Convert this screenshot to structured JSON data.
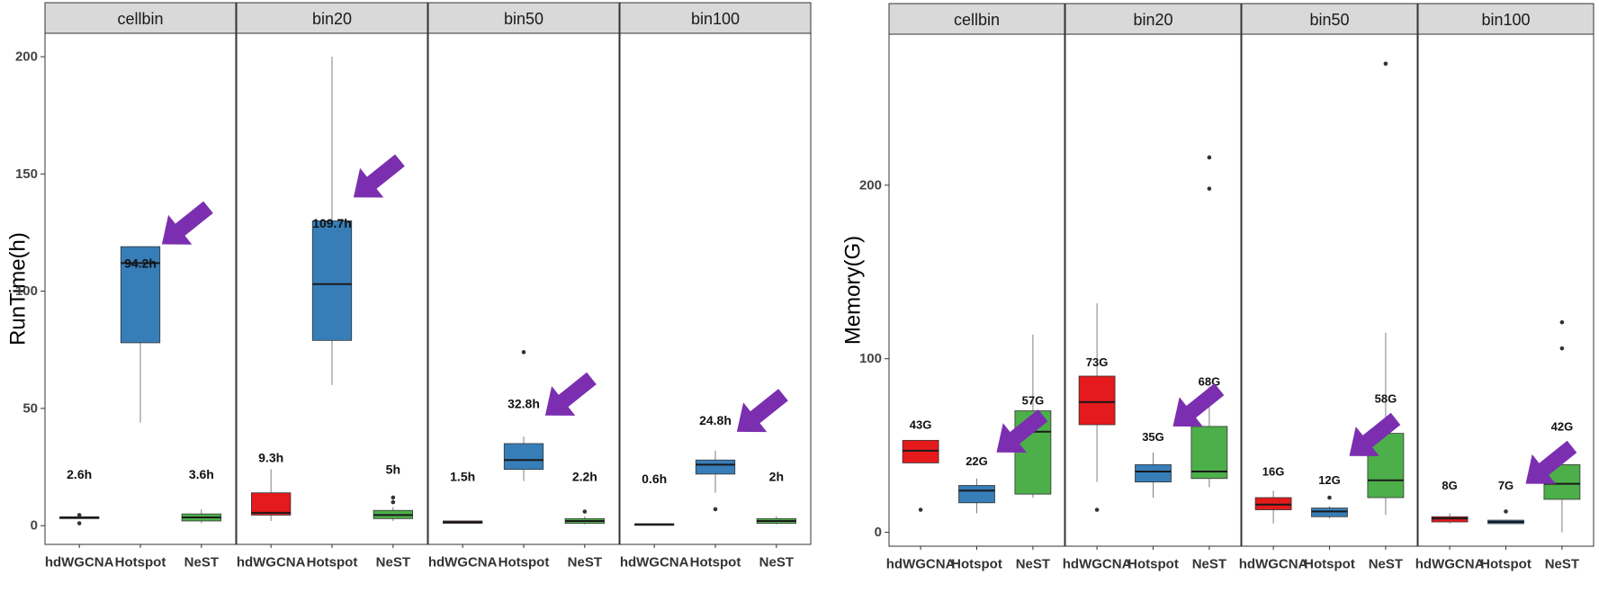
{
  "colors": {
    "hdWGCNA": "#e41a1c",
    "Hotspot": "#377eb8",
    "NeST": "#4daf4a",
    "arrow": "#7b2fb0",
    "strip": "#d9d9d9",
    "panel_border": "#333333"
  },
  "chart_data": [
    {
      "type": "box",
      "ylabel": "RunTime(h)",
      "ylim": [
        -8,
        210
      ],
      "yticks": [
        0,
        50,
        100,
        150,
        200
      ],
      "categories": [
        "hdWGCNA",
        "Hotspot",
        "NeST"
      ],
      "panels": [
        {
          "name": "cellbin",
          "boxes": [
            {
              "group": "hdWGCNA",
              "q1": 3.0,
              "median": 3.4,
              "q3": 3.8,
              "wlo": 3.0,
              "whi": 3.8,
              "outliers": [
                1.0,
                4.5
              ],
              "label": "2.6h",
              "label_y": 22
            },
            {
              "group": "Hotspot",
              "q1": 78,
              "median": 112,
              "q3": 119,
              "wlo": 44,
              "whi": 119,
              "outliers": [],
              "label": "94.2h",
              "label_y": 112
            },
            {
              "group": "NeST",
              "q1": 2.0,
              "median": 3.5,
              "q3": 5.0,
              "wlo": 1.0,
              "whi": 7.0,
              "outliers": [],
              "label": "3.6h",
              "label_y": 22
            }
          ],
          "arrow_target": {
            "group": "Hotspot",
            "y": 120
          }
        },
        {
          "name": "bin20",
          "boxes": [
            {
              "group": "hdWGCNA",
              "q1": 4.5,
              "median": 5.5,
              "q3": 14,
              "wlo": 2,
              "whi": 24,
              "outliers": [],
              "label": "9.3h",
              "label_y": 29
            },
            {
              "group": "Hotspot",
              "q1": 79,
              "median": 103,
              "q3": 130,
              "wlo": 60,
              "whi": 200,
              "outliers": [],
              "label": "109.7h",
              "label_y": 129
            },
            {
              "group": "NeST",
              "q1": 3.0,
              "median": 4.5,
              "q3": 6.5,
              "wlo": 2,
              "whi": 8,
              "outliers": [
                10,
                12
              ],
              "label": "5h",
              "label_y": 24
            }
          ],
          "arrow_target": {
            "group": "Hotspot",
            "y": 140
          }
        },
        {
          "name": "bin50",
          "boxes": [
            {
              "group": "hdWGCNA",
              "q1": 1.0,
              "median": 1.5,
              "q3": 2.0,
              "wlo": 1.0,
              "whi": 2.0,
              "outliers": [],
              "label": "1.5h",
              "label_y": 21
            },
            {
              "group": "Hotspot",
              "q1": 24,
              "median": 28,
              "q3": 35,
              "wlo": 19,
              "whi": 38,
              "outliers": [
                74
              ],
              "label": "32.8h",
              "label_y": 52
            },
            {
              "group": "NeST",
              "q1": 1.0,
              "median": 2.0,
              "q3": 3.0,
              "wlo": 0.5,
              "whi": 4.0,
              "outliers": [
                6
              ],
              "label": "2.2h",
              "label_y": 21
            }
          ],
          "arrow_target": {
            "group": "Hotspot",
            "y": 47
          }
        },
        {
          "name": "bin100",
          "boxes": [
            {
              "group": "hdWGCNA",
              "q1": 0.5,
              "median": 0.6,
              "q3": 0.7,
              "wlo": 0.5,
              "whi": 0.7,
              "outliers": [],
              "label": "0.6h",
              "label_y": 20
            },
            {
              "group": "Hotspot",
              "q1": 22,
              "median": 26,
              "q3": 28,
              "wlo": 14,
              "whi": 32,
              "outliers": [
                7
              ],
              "label": "24.8h",
              "label_y": 45
            },
            {
              "group": "NeST",
              "q1": 1.0,
              "median": 2.0,
              "q3": 3.0,
              "wlo": 0.5,
              "whi": 4.0,
              "outliers": [],
              "label": "2h",
              "label_y": 21
            }
          ],
          "arrow_target": {
            "group": "Hotspot",
            "y": 40
          }
        }
      ]
    },
    {
      "type": "box",
      "ylabel": "Memory(G)",
      "ylim": [
        -8,
        287
      ],
      "yticks": [
        0,
        100,
        200
      ],
      "categories": [
        "hdWGCNA",
        "Hotspot",
        "NeST"
      ],
      "panels": [
        {
          "name": "cellbin",
          "boxes": [
            {
              "group": "hdWGCNA",
              "q1": 40,
              "median": 47,
              "q3": 53,
              "wlo": 40,
              "whi": 53,
              "outliers": [
                13
              ],
              "label": "43G",
              "label_y": 62
            },
            {
              "group": "Hotspot",
              "q1": 17,
              "median": 24,
              "q3": 27,
              "wlo": 11,
              "whi": 31,
              "outliers": [],
              "label": "22G",
              "label_y": 41
            },
            {
              "group": "NeST",
              "q1": 22,
              "median": 58,
              "q3": 70,
              "wlo": 20,
              "whi": 114,
              "outliers": [],
              "label": "57G",
              "label_y": 76
            }
          ],
          "arrow_target": {
            "group": "Hotspot",
            "y": 46
          }
        },
        {
          "name": "bin20",
          "boxes": [
            {
              "group": "hdWGCNA",
              "q1": 62,
              "median": 75,
              "q3": 90,
              "wlo": 29,
              "whi": 132,
              "outliers": [
                13
              ],
              "label": "73G",
              "label_y": 98
            },
            {
              "group": "Hotspot",
              "q1": 29,
              "median": 35,
              "q3": 39,
              "wlo": 20,
              "whi": 46,
              "outliers": [],
              "label": "35G",
              "label_y": 55
            },
            {
              "group": "NeST",
              "q1": 31,
              "median": 35,
              "q3": 61,
              "wlo": 26,
              "whi": 84,
              "outliers": [
                198,
                216
              ],
              "label": "68G",
              "label_y": 87
            }
          ],
          "arrow_target": {
            "group": "Hotspot",
            "y": 61
          }
        },
        {
          "name": "bin50",
          "boxes": [
            {
              "group": "hdWGCNA",
              "q1": 13,
              "median": 16,
              "q3": 20,
              "wlo": 5,
              "whi": 24,
              "outliers": [],
              "label": "16G",
              "label_y": 35
            },
            {
              "group": "Hotspot",
              "q1": 9,
              "median": 12,
              "q3": 14,
              "wlo": 8,
              "whi": 15,
              "outliers": [
                20
              ],
              "label": "12G",
              "label_y": 30
            },
            {
              "group": "NeST",
              "q1": 20,
              "median": 30,
              "q3": 57,
              "wlo": 10,
              "whi": 115,
              "outliers": [
                270
              ],
              "label": "58G",
              "label_y": 77
            }
          ],
          "arrow_target": {
            "group": "Hotspot",
            "y": 44
          }
        },
        {
          "name": "bin100",
          "boxes": [
            {
              "group": "hdWGCNA",
              "q1": 6,
              "median": 8,
              "q3": 9,
              "wlo": 5,
              "whi": 11,
              "outliers": [],
              "label": "8G",
              "label_y": 27
            },
            {
              "group": "Hotspot",
              "q1": 5,
              "median": 6,
              "q3": 7,
              "wlo": 5,
              "whi": 7,
              "outliers": [
                12
              ],
              "label": "7G",
              "label_y": 27
            },
            {
              "group": "NeST",
              "q1": 19,
              "median": 28,
              "q3": 39,
              "wlo": 0,
              "whi": 40,
              "outliers": [
                106,
                121
              ],
              "label": "42G",
              "label_y": 61
            }
          ],
          "arrow_target": {
            "group": "Hotspot",
            "y": 28
          }
        }
      ]
    }
  ]
}
